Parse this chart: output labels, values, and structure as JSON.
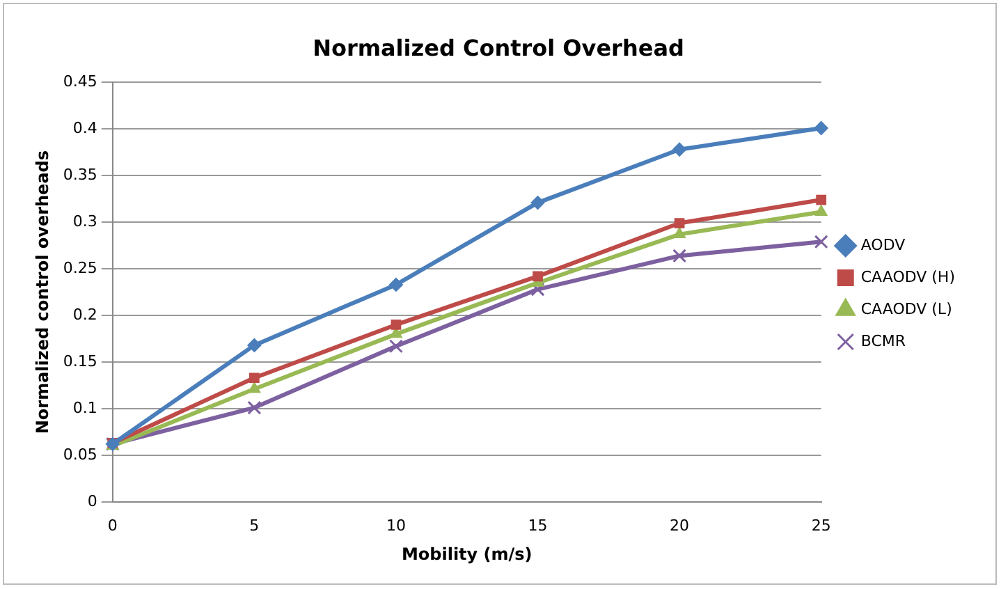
{
  "chart_data": {
    "type": "line",
    "title": "Normalized Control Overhead",
    "xlabel": "Mobility (m/s)",
    "ylabel": "Normalized control overheads",
    "categories": [
      "0",
      "5",
      "10",
      "15",
      "20",
      "25"
    ],
    "series": [
      {
        "name": "AODV",
        "color": "#4a7ebb",
        "marker": "diamond",
        "values": [
          0.062,
          0.168,
          0.233,
          0.321,
          0.378,
          0.401
        ]
      },
      {
        "name": "CAAODV (H)",
        "color": "#be4b48",
        "marker": "square",
        "values": [
          0.063,
          0.133,
          0.19,
          0.242,
          0.299,
          0.324
        ]
      },
      {
        "name": "CAAODV (L)",
        "color": "#98b954",
        "marker": "triangle",
        "values": [
          0.06,
          0.121,
          0.18,
          0.235,
          0.287,
          0.311
        ]
      },
      {
        "name": "BCMR",
        "color": "#7d60a0",
        "marker": "cross",
        "values": [
          0.062,
          0.101,
          0.167,
          0.228,
          0.264,
          0.279
        ]
      }
    ],
    "ylim": [
      0,
      0.45
    ],
    "yticks": [
      0,
      0.05,
      0.1,
      0.15,
      0.2,
      0.25,
      0.3,
      0.35,
      0.4,
      0.45
    ],
    "grid": "y",
    "legend": "right",
    "line_style": "solid"
  }
}
